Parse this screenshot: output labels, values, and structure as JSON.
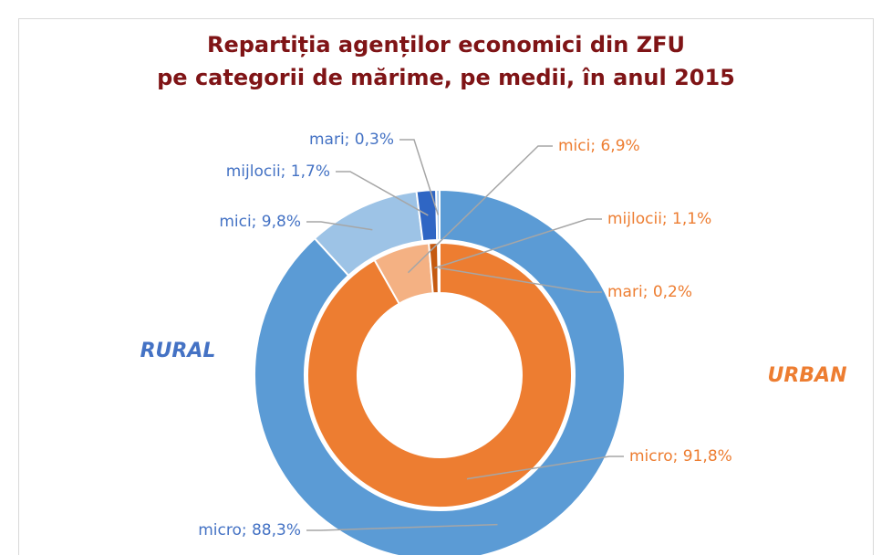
{
  "chart_data": {
    "type": "donut",
    "title": "Repartiția agenților economici din ZFU",
    "subtitle": "pe categorii de mărime, pe medii, în anul 2015",
    "categories": [
      "micro",
      "mici",
      "mijlocii",
      "mari"
    ],
    "series": [
      {
        "name": "RURAL",
        "color": "#4472c4",
        "colors": [
          "#5b9bd5",
          "#9dc3e6",
          "#2f66c4",
          "#a9cbeb"
        ],
        "values": [
          88.3,
          9.8,
          1.7,
          0.3
        ],
        "value_labels": [
          "micro; 88,3%",
          "mici; 9,8%",
          "mijlocii; 1,7%",
          "mari; 0,3%"
        ]
      },
      {
        "name": "URBAN",
        "color": "#ed7d31",
        "colors": [
          "#ed7d31",
          "#f4b183",
          "#c55a11",
          "#f8cbad"
        ],
        "values": [
          91.8,
          6.9,
          1.1,
          0.2
        ],
        "value_labels": [
          "micro; 91,8%",
          "mici; 6,9%",
          "mijlocii; 1,1%",
          "mari; 0,2%"
        ]
      }
    ]
  }
}
